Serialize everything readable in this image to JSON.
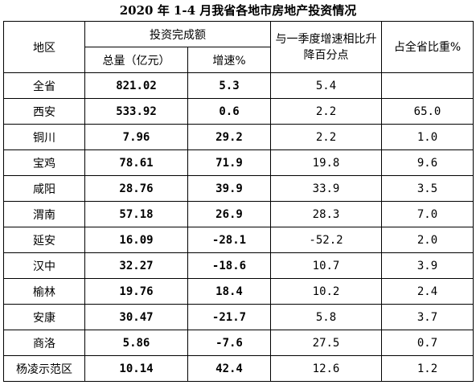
{
  "title": "2020 年 1-4 月我省各地市房地产投资情况",
  "headers": {
    "region": "地区",
    "investment": "投资完成额",
    "total": "总量（亿元）",
    "growth": "增速%",
    "change": "与一季度增速相比升降百分点",
    "share": "占全省比重%"
  },
  "rows": [
    {
      "region": "全省",
      "total": "821.02",
      "growth": "5.3",
      "change": "5.4",
      "share": ""
    },
    {
      "region": "西安",
      "total": "533.92",
      "growth": "0.6",
      "change": "2.2",
      "share": "65.0"
    },
    {
      "region": "铜川",
      "total": "7.96",
      "growth": "29.2",
      "change": "2.2",
      "share": "1.0"
    },
    {
      "region": "宝鸡",
      "total": "78.61",
      "growth": "71.9",
      "change": "19.8",
      "share": "9.6"
    },
    {
      "region": "咸阳",
      "total": "28.76",
      "growth": "39.9",
      "change": "33.9",
      "share": "3.5"
    },
    {
      "region": "渭南",
      "total": "57.18",
      "growth": "26.9",
      "change": "28.3",
      "share": "7.0"
    },
    {
      "region": "延安",
      "total": "16.09",
      "growth": "-28.1",
      "change": "-52.2",
      "share": "2.0"
    },
    {
      "region": "汉中",
      "total": "32.27",
      "growth": "-18.6",
      "change": "10.7",
      "share": "3.9"
    },
    {
      "region": "榆林",
      "total": "19.76",
      "growth": "18.4",
      "change": "10.2",
      "share": "2.4"
    },
    {
      "region": "安康",
      "total": "30.47",
      "growth": "-21.7",
      "change": "5.8",
      "share": "3.7"
    },
    {
      "region": "商洛",
      "total": "5.86",
      "growth": "-7.6",
      "change": "27.5",
      "share": "0.7"
    },
    {
      "region": "杨凌示范区",
      "total": "10.14",
      "growth": "42.4",
      "change": "12.6",
      "share": "1.2"
    }
  ]
}
